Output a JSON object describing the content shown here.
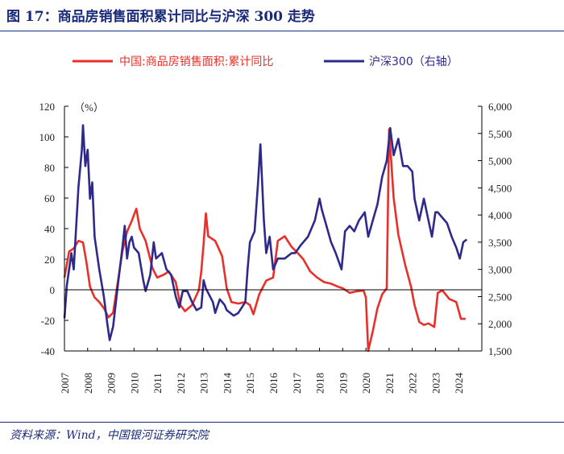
{
  "figure_title": "图 17：商品房销售面积累计同比与沪深 300 走势",
  "source_note": "资料来源：Wind，中国银河证券研究院",
  "colors": {
    "series_sales": "#e8302a",
    "series_csi": "#2e2a8c",
    "axis": "#000000",
    "title": "#1a2a7a"
  },
  "chart_data": {
    "type": "line",
    "title": "",
    "xlabel": "",
    "left_axis": {
      "unit_label": "（%）",
      "ylim": [
        -40,
        120
      ],
      "ticks": [
        -40,
        -20,
        0,
        20,
        40,
        60,
        80,
        100,
        120
      ],
      "tick_labels": [
        "-40",
        "-20",
        "0",
        "20",
        "40",
        "60",
        "80",
        "100",
        "120"
      ]
    },
    "right_axis": {
      "ylim": [
        1500,
        6000
      ],
      "ticks": [
        1500,
        2000,
        2500,
        3000,
        3500,
        4000,
        4500,
        5000,
        5500,
        6000
      ],
      "tick_labels": [
        "1,500",
        "2,000",
        "2,500",
        "3,000",
        "3,500",
        "4,000",
        "4,500",
        "5,000",
        "5,500",
        "6,000"
      ]
    },
    "x_range": [
      2007,
      2025
    ],
    "x_ticks": [
      2007,
      2008,
      2009,
      2010,
      2011,
      2012,
      2013,
      2014,
      2015,
      2016,
      2017,
      2018,
      2019,
      2020,
      2021,
      2022,
      2023,
      2024
    ],
    "x_tick_labels": [
      "2007",
      "2008",
      "2009",
      "2010",
      "2011",
      "2012",
      "2013",
      "2014",
      "2015",
      "2016",
      "2017",
      "2018",
      "2019",
      "2020",
      "2021",
      "2022",
      "2023",
      "2024"
    ],
    "legend_position": "top-center",
    "series": [
      {
        "name": "中国:商品房销售面积:累计同比",
        "axis": "left",
        "points": [
          [
            2007.0,
            8
          ],
          [
            2007.2,
            25
          ],
          [
            2007.4,
            27
          ],
          [
            2007.6,
            32
          ],
          [
            2007.8,
            31
          ],
          [
            2007.95,
            18
          ],
          [
            2008.1,
            2
          ],
          [
            2008.3,
            -5
          ],
          [
            2008.5,
            -8
          ],
          [
            2008.7,
            -12
          ],
          [
            2008.9,
            -18
          ],
          [
            2009.1,
            -15
          ],
          [
            2009.3,
            5
          ],
          [
            2009.5,
            25
          ],
          [
            2009.7,
            38
          ],
          [
            2009.9,
            45
          ],
          [
            2010.1,
            53
          ],
          [
            2010.25,
            40
          ],
          [
            2010.5,
            32
          ],
          [
            2010.8,
            14
          ],
          [
            2011.0,
            8
          ],
          [
            2011.3,
            10
          ],
          [
            2011.5,
            12
          ],
          [
            2011.8,
            5
          ],
          [
            2012.0,
            -10
          ],
          [
            2012.2,
            -14
          ],
          [
            2012.5,
            -10
          ],
          [
            2012.8,
            0
          ],
          [
            2012.9,
            12
          ],
          [
            2013.0,
            30
          ],
          [
            2013.1,
            50
          ],
          [
            2013.2,
            35
          ],
          [
            2013.5,
            32
          ],
          [
            2013.8,
            22
          ],
          [
            2014.0,
            1
          ],
          [
            2014.2,
            -8
          ],
          [
            2014.5,
            -9
          ],
          [
            2014.8,
            -8
          ],
          [
            2015.0,
            -10
          ],
          [
            2015.15,
            -16
          ],
          [
            2015.4,
            -3
          ],
          [
            2015.7,
            6
          ],
          [
            2016.0,
            8
          ],
          [
            2016.2,
            32
          ],
          [
            2016.5,
            35
          ],
          [
            2016.8,
            28
          ],
          [
            2017.0,
            25
          ],
          [
            2017.3,
            20
          ],
          [
            2017.6,
            12
          ],
          [
            2017.9,
            8
          ],
          [
            2018.2,
            5
          ],
          [
            2018.5,
            4
          ],
          [
            2018.8,
            2
          ],
          [
            2019.0,
            1
          ],
          [
            2019.3,
            -2
          ],
          [
            2019.6,
            -1
          ],
          [
            2019.9,
            -0.5
          ],
          [
            2020.0,
            -5
          ],
          [
            2020.1,
            -39.9
          ],
          [
            2020.3,
            -27
          ],
          [
            2020.5,
            -12
          ],
          [
            2020.7,
            -3
          ],
          [
            2020.9,
            1
          ],
          [
            2021.0,
            104.9
          ],
          [
            2021.2,
            60
          ],
          [
            2021.4,
            36
          ],
          [
            2021.7,
            16
          ],
          [
            2021.95,
            1.9
          ],
          [
            2022.1,
            -10
          ],
          [
            2022.3,
            -21
          ],
          [
            2022.5,
            -23
          ],
          [
            2022.7,
            -22
          ],
          [
            2022.95,
            -24.3
          ],
          [
            2023.1,
            -2
          ],
          [
            2023.3,
            -0.4
          ],
          [
            2023.6,
            -6
          ],
          [
            2023.9,
            -8
          ],
          [
            2024.1,
            -19
          ],
          [
            2024.3,
            -19
          ]
        ]
      },
      {
        "name": "沪深300（右轴）",
        "axis": "right",
        "points": [
          [
            2007.0,
            2100
          ],
          [
            2007.1,
            2700
          ],
          [
            2007.3,
            3300
          ],
          [
            2007.4,
            3000
          ],
          [
            2007.6,
            4500
          ],
          [
            2007.75,
            5200
          ],
          [
            2007.8,
            5650
          ],
          [
            2007.9,
            4900
          ],
          [
            2008.0,
            5200
          ],
          [
            2008.1,
            4300
          ],
          [
            2008.2,
            4600
          ],
          [
            2008.3,
            3600
          ],
          [
            2008.5,
            3000
          ],
          [
            2008.7,
            2500
          ],
          [
            2008.85,
            2000
          ],
          [
            2008.95,
            1700
          ],
          [
            2009.1,
            1950
          ],
          [
            2009.3,
            2700
          ],
          [
            2009.5,
            3400
          ],
          [
            2009.6,
            3800
          ],
          [
            2009.7,
            3200
          ],
          [
            2009.8,
            3500
          ],
          [
            2009.9,
            3600
          ],
          [
            2010.0,
            3400
          ],
          [
            2010.2,
            3300
          ],
          [
            2010.4,
            2800
          ],
          [
            2010.5,
            2600
          ],
          [
            2010.7,
            2900
          ],
          [
            2010.85,
            3500
          ],
          [
            2010.95,
            3200
          ],
          [
            2011.2,
            3300
          ],
          [
            2011.4,
            3000
          ],
          [
            2011.6,
            2900
          ],
          [
            2011.8,
            2500
          ],
          [
            2011.95,
            2300
          ],
          [
            2012.1,
            2600
          ],
          [
            2012.3,
            2600
          ],
          [
            2012.5,
            2400
          ],
          [
            2012.7,
            2250
          ],
          [
            2012.9,
            2300
          ],
          [
            2013.0,
            2800
          ],
          [
            2013.1,
            2650
          ],
          [
            2013.4,
            2400
          ],
          [
            2013.5,
            2200
          ],
          [
            2013.7,
            2450
          ],
          [
            2013.9,
            2350
          ],
          [
            2014.0,
            2250
          ],
          [
            2014.3,
            2150
          ],
          [
            2014.5,
            2200
          ],
          [
            2014.8,
            2400
          ],
          [
            2014.9,
            3000
          ],
          [
            2015.0,
            3500
          ],
          [
            2015.2,
            3700
          ],
          [
            2015.35,
            4600
          ],
          [
            2015.45,
            5300
          ],
          [
            2015.6,
            3900
          ],
          [
            2015.7,
            3300
          ],
          [
            2015.85,
            3600
          ],
          [
            2016.0,
            3000
          ],
          [
            2016.2,
            3200
          ],
          [
            2016.5,
            3200
          ],
          [
            2016.8,
            3300
          ],
          [
            2016.95,
            3300
          ],
          [
            2017.2,
            3450
          ],
          [
            2017.5,
            3600
          ],
          [
            2017.8,
            3900
          ],
          [
            2018.0,
            4300
          ],
          [
            2018.1,
            4100
          ],
          [
            2018.3,
            3800
          ],
          [
            2018.5,
            3500
          ],
          [
            2018.7,
            3300
          ],
          [
            2018.95,
            3000
          ],
          [
            2019.1,
            3700
          ],
          [
            2019.3,
            3800
          ],
          [
            2019.5,
            3700
          ],
          [
            2019.7,
            3900
          ],
          [
            2019.95,
            4050
          ],
          [
            2020.1,
            3600
          ],
          [
            2020.3,
            3900
          ],
          [
            2020.5,
            4200
          ],
          [
            2020.7,
            4700
          ],
          [
            2020.9,
            5000
          ],
          [
            2021.05,
            5600
          ],
          [
            2021.2,
            5100
          ],
          [
            2021.4,
            5400
          ],
          [
            2021.6,
            4900
          ],
          [
            2021.8,
            4900
          ],
          [
            2022.0,
            4800
          ],
          [
            2022.1,
            4300
          ],
          [
            2022.3,
            3900
          ],
          [
            2022.5,
            4300
          ],
          [
            2022.7,
            3900
          ],
          [
            2022.85,
            3600
          ],
          [
            2023.0,
            4050
          ],
          [
            2023.1,
            4050
          ],
          [
            2023.3,
            3950
          ],
          [
            2023.5,
            3850
          ],
          [
            2023.7,
            3600
          ],
          [
            2023.9,
            3400
          ],
          [
            2024.05,
            3200
          ],
          [
            2024.2,
            3500
          ],
          [
            2024.35,
            3550
          ]
        ]
      }
    ]
  }
}
